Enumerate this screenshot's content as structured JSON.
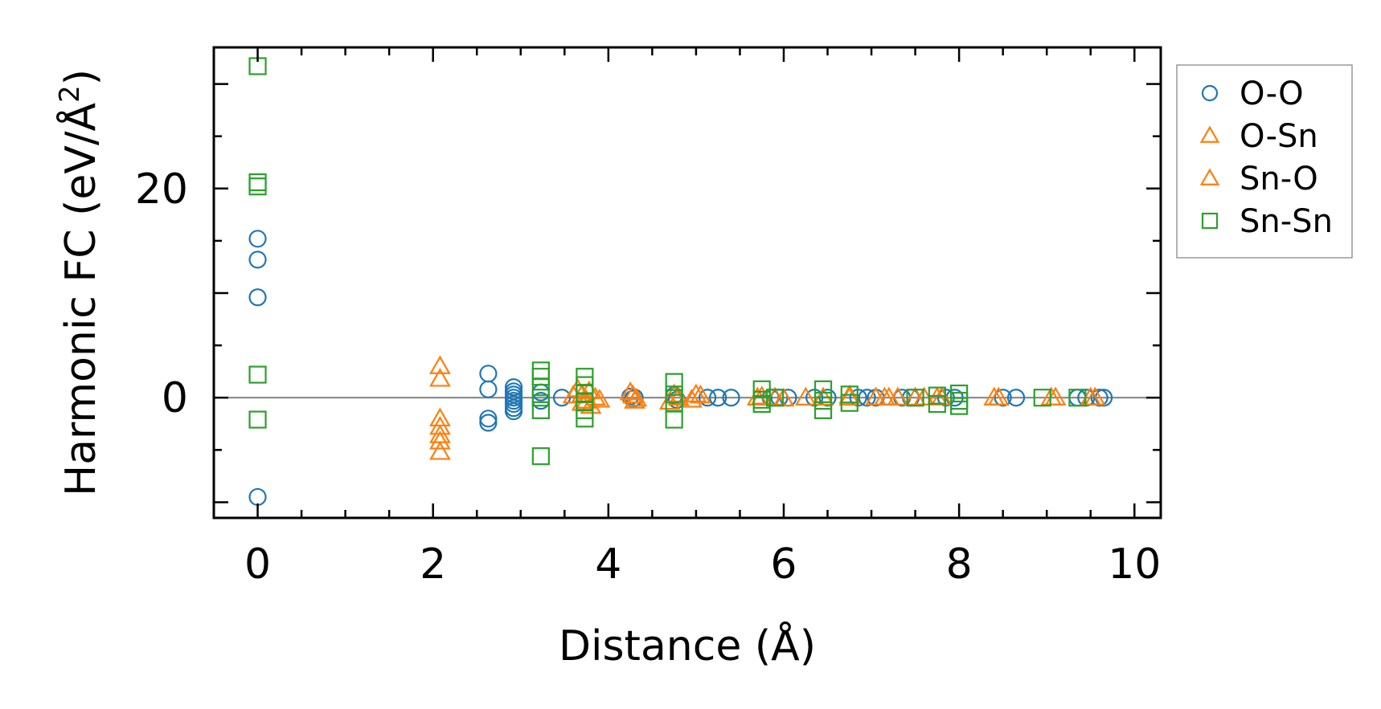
{
  "chart_data": {
    "type": "scatter",
    "title": "",
    "xlabel": "Distance (Å)",
    "ylabel": "Harmonic FC (eV/Å",
    "ylabel_superscript": "2",
    "ylabel_suffix": ")",
    "xlim": [
      -0.5,
      10.3
    ],
    "ylim": [
      -11.5,
      33.5
    ],
    "xticks": [
      0,
      2,
      4,
      6,
      8,
      10
    ],
    "yticks": [
      0,
      20
    ],
    "zero_line": true,
    "legend_position": "outside-right-top",
    "colors": {
      "blue": "#1f77b4",
      "orange": "#ff7f0e",
      "green": "#2ca02c",
      "zeroline": "#808080"
    },
    "series": [
      {
        "name": "O-O",
        "marker": "circle",
        "color": "#1f77b4",
        "x": [
          0,
          0,
          0,
          0,
          2.63,
          2.63,
          2.63,
          2.63,
          2.92,
          2.92,
          2.92,
          2.92,
          2.92,
          2.92,
          2.92,
          2.92,
          3.23,
          3.23,
          3.47,
          4.25,
          4.28,
          4.3,
          4.75,
          4.78,
          5.13,
          5.25,
          5.4,
          5.85,
          5.95,
          6.05,
          6.35,
          6.5,
          6.85,
          6.95,
          7.05,
          7.35,
          7.45,
          7.85,
          7.95,
          8.5,
          8.65,
          9.35,
          9.45,
          9.6,
          9.65
        ],
        "y": [
          15.2,
          13.2,
          9.6,
          -9.5,
          2.3,
          0.8,
          -2.0,
          -2.4,
          1.0,
          0.6,
          0.3,
          0.0,
          -0.3,
          -0.6,
          -1.0,
          -1.3,
          0.5,
          -0.3,
          0.0,
          0.1,
          -0.1,
          0.0,
          0.2,
          -0.2,
          0.0,
          0.0,
          0.0,
          0.0,
          0.0,
          0.0,
          0.0,
          0.0,
          0.0,
          0.0,
          0.0,
          0.0,
          0.0,
          0.0,
          0.0,
          0.0,
          0.0,
          0.0,
          0.0,
          0.0,
          0.0
        ]
      },
      {
        "name": "O-Sn",
        "marker": "triangle",
        "color": "#ff7f0e",
        "x": [
          2.08,
          2.08,
          2.08,
          2.08,
          3.65,
          3.7,
          3.75,
          3.8,
          3.85,
          4.25,
          4.3,
          4.75,
          5.0,
          5.7,
          5.9,
          6.25,
          6.75,
          7.15,
          7.3,
          7.5,
          7.75,
          8.4,
          9.05,
          9.55
        ],
        "y": [
          3.0,
          1.8,
          -2.0,
          -2.8,
          0.8,
          0.3,
          -0.3,
          -0.8,
          0.0,
          0.5,
          -0.3,
          0.3,
          0.3,
          0.0,
          0.0,
          0.0,
          0.0,
          0.0,
          0.0,
          0.0,
          0.0,
          0.0,
          0.0,
          0.0
        ]
      },
      {
        "name": "Sn-O",
        "marker": "triangle",
        "color": "#ff7f0e",
        "x": [
          2.08,
          2.08,
          2.08,
          3.6,
          3.7,
          3.78,
          3.9,
          4.28,
          4.32,
          4.7,
          4.8,
          4.95,
          5.05,
          5.75,
          6.0,
          6.45,
          6.75,
          7.05,
          7.2,
          7.6,
          7.8,
          8.45,
          9.1,
          9.5
        ],
        "y": [
          -3.6,
          -4.2,
          -5.2,
          0.2,
          -0.5,
          0.6,
          -0.2,
          0.2,
          -0.1,
          -0.4,
          0.0,
          -0.2,
          0.2,
          0.1,
          -0.1,
          0.0,
          0.2,
          0.0,
          0.0,
          0.0,
          0.0,
          0.0,
          0.0,
          0.0
        ]
      },
      {
        "name": "Sn-Sn",
        "marker": "square",
        "color": "#2ca02c",
        "x": [
          0,
          0,
          0,
          0,
          0,
          3.23,
          3.23,
          3.23,
          3.23,
          3.23,
          3.23,
          3.73,
          3.73,
          3.73,
          3.73,
          3.73,
          3.73,
          4.75,
          4.75,
          4.75,
          4.75,
          5.75,
          5.75,
          5.75,
          5.9,
          6.45,
          6.45,
          6.45,
          6.75,
          6.75,
          7.5,
          7.75,
          7.75,
          8.0,
          8.0,
          8.0,
          8.95,
          9.35
        ],
        "y": [
          31.7,
          20.6,
          20.2,
          2.2,
          -2.1,
          2.6,
          2.0,
          1.0,
          0.0,
          -1.2,
          -5.6,
          2.0,
          1.2,
          0.4,
          -0.4,
          -1.2,
          -2.0,
          1.5,
          0.3,
          -0.5,
          -2.1,
          0.8,
          -0.2,
          -0.6,
          0.0,
          0.8,
          -0.3,
          -1.2,
          0.3,
          -0.5,
          0.0,
          0.2,
          -0.6,
          0.4,
          -0.3,
          -0.8,
          0.0,
          0.0
        ]
      }
    ]
  }
}
